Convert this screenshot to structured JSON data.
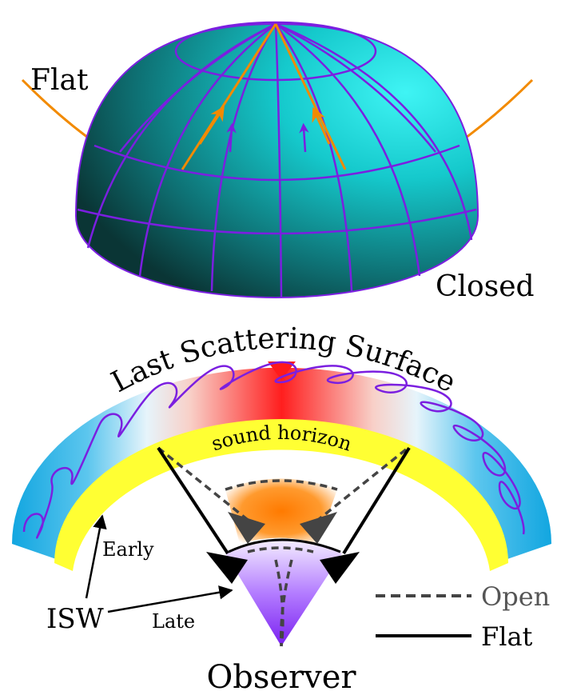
{
  "top_panel": {
    "flat_label": "Flat",
    "closed_label": "Closed"
  },
  "bottom_panel": {
    "lss_title": "Last Scattering Surface",
    "sound_horizon_label": "sound horizon",
    "early_label": "Early",
    "isw_label": "ISW",
    "late_label": "Late",
    "observer_label": "Observer",
    "legend": {
      "open_label": "Open",
      "flat_label": "Flat"
    }
  },
  "colors": {
    "sphere_light": "#22e6e6",
    "sphere_dark": "#0b3b3b",
    "grid_purple": "#7b1fe0",
    "orange": "#f28a00",
    "yellow": "#ffff33",
    "red": "#ff1a1a",
    "blue": "#2ab4e6"
  }
}
